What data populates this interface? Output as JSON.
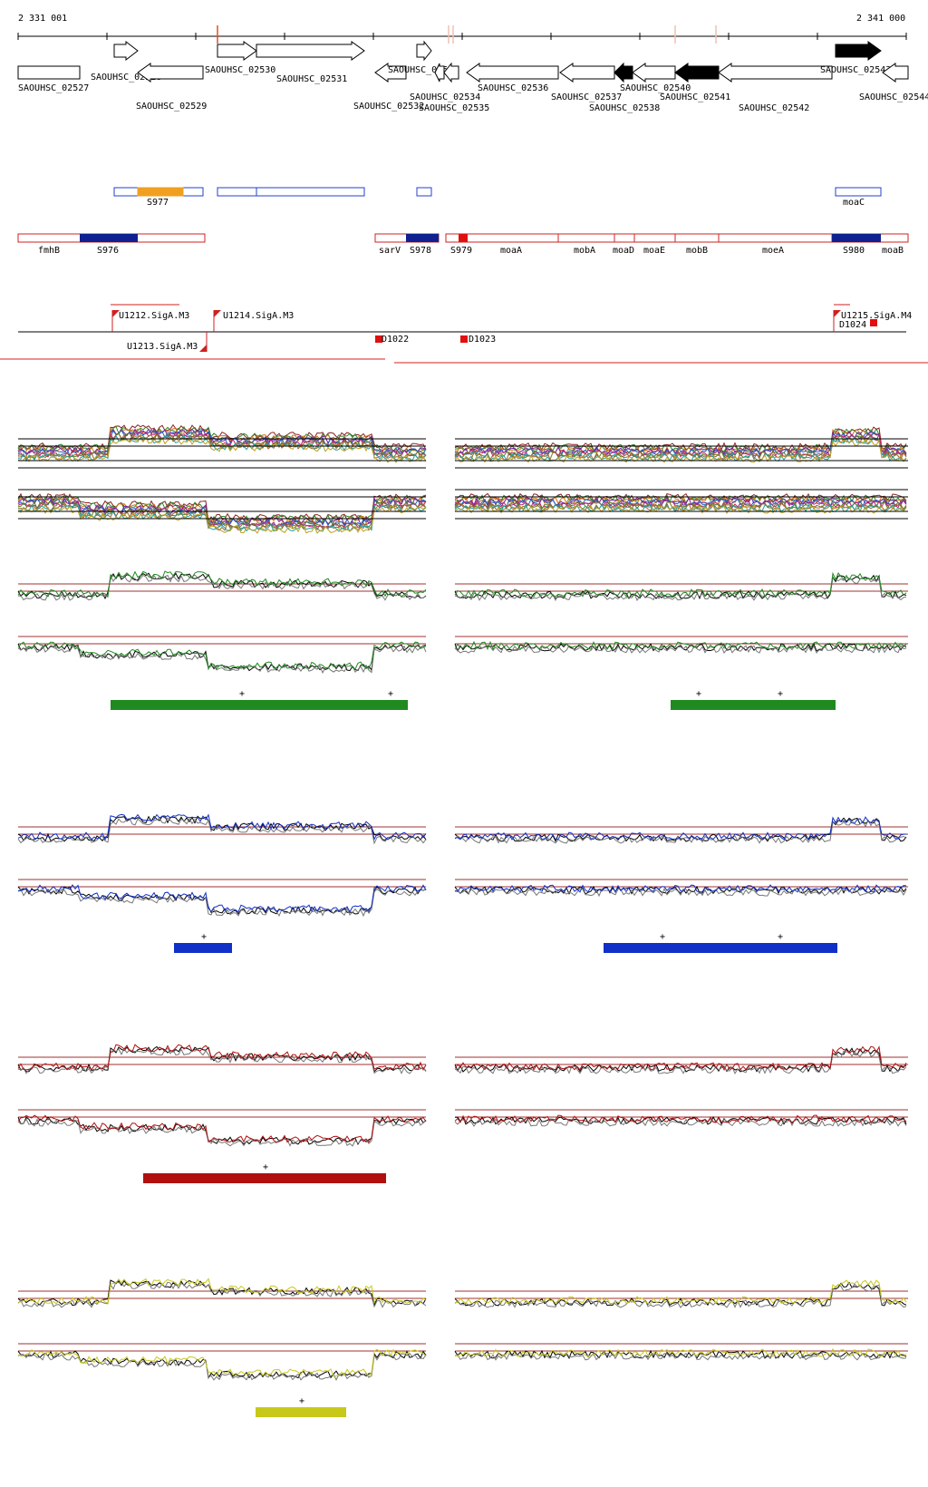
{
  "ruler": {
    "start_label": "2 331 001",
    "end_label": "2 341 000"
  },
  "genes": [
    {
      "label": "SAOUHSC_02527",
      "dir": "none",
      "filled": false
    },
    {
      "label": "SAOUHSC_02528",
      "dir": "right",
      "filled": false
    },
    {
      "label": "SAOUHSC_02529",
      "dir": "left",
      "filled": false
    },
    {
      "label": "SAOUHSC_02530",
      "dir": "right",
      "filled": false
    },
    {
      "label": "SAOUHSC_02531",
      "dir": "right",
      "filled": false
    },
    {
      "label": "SAOUHSC_02532",
      "dir": "left",
      "filled": false
    },
    {
      "label": "SAOUHSC_02533",
      "dir": "right",
      "filled": false
    },
    {
      "label": "SAOUHSC_02534",
      "dir": "left",
      "filled": false
    },
    {
      "label": "SAOUHSC_02535",
      "dir": "left",
      "filled": false
    },
    {
      "label": "SAOUHSC_02536",
      "dir": "left",
      "filled": false
    },
    {
      "label": "SAOUHSC_02537",
      "dir": "left",
      "filled": false
    },
    {
      "label": "SAOUHSC_02538",
      "dir": "left",
      "filled": true
    },
    {
      "label": "SAOUHSC_02540",
      "dir": "left",
      "filled": false
    },
    {
      "label": "SAOUHSC_02541",
      "dir": "left",
      "filled": true
    },
    {
      "label": "SAOUHSC_02542",
      "dir": "left",
      "filled": false
    },
    {
      "label": "SAOUHSC_02543",
      "dir": "right",
      "filled": true
    },
    {
      "label": "SAOUHSC_02544",
      "dir": "left",
      "filled": false
    }
  ],
  "features_upper": [
    {
      "label": "S977",
      "color": "#f0a020"
    },
    {
      "label": "moaC",
      "color": "#2040d0"
    }
  ],
  "features_lower": [
    {
      "label": "fmhB"
    },
    {
      "label": "S976"
    },
    {
      "label": "sarV"
    },
    {
      "label": "S978"
    },
    {
      "label": "S979"
    },
    {
      "label": "moaA"
    },
    {
      "label": "mobA"
    },
    {
      "label": "moaD"
    },
    {
      "label": "moaE"
    },
    {
      "label": "mobB"
    },
    {
      "label": "moeA"
    },
    {
      "label": "S980"
    },
    {
      "label": "moaB"
    }
  ],
  "promoters": [
    {
      "label": "U1212.SigA.M3"
    },
    {
      "label": "U1213.SigA.M3"
    },
    {
      "label": "U1214.SigA.M3"
    },
    {
      "label": "U1215.SigA.M4"
    },
    {
      "label": "D1022"
    },
    {
      "label": "D1023"
    },
    {
      "label": "D1024"
    }
  ],
  "panels": [
    {
      "color": "#208a20",
      "mark": "+"
    },
    {
      "color": "#1030c8",
      "mark": "+"
    },
    {
      "color": "#b01010",
      "mark": "+"
    },
    {
      "color": "#c8c81a",
      "mark": "+"
    }
  ],
  "colors": {
    "threshold": "#a03030",
    "reference": "#000000"
  }
}
